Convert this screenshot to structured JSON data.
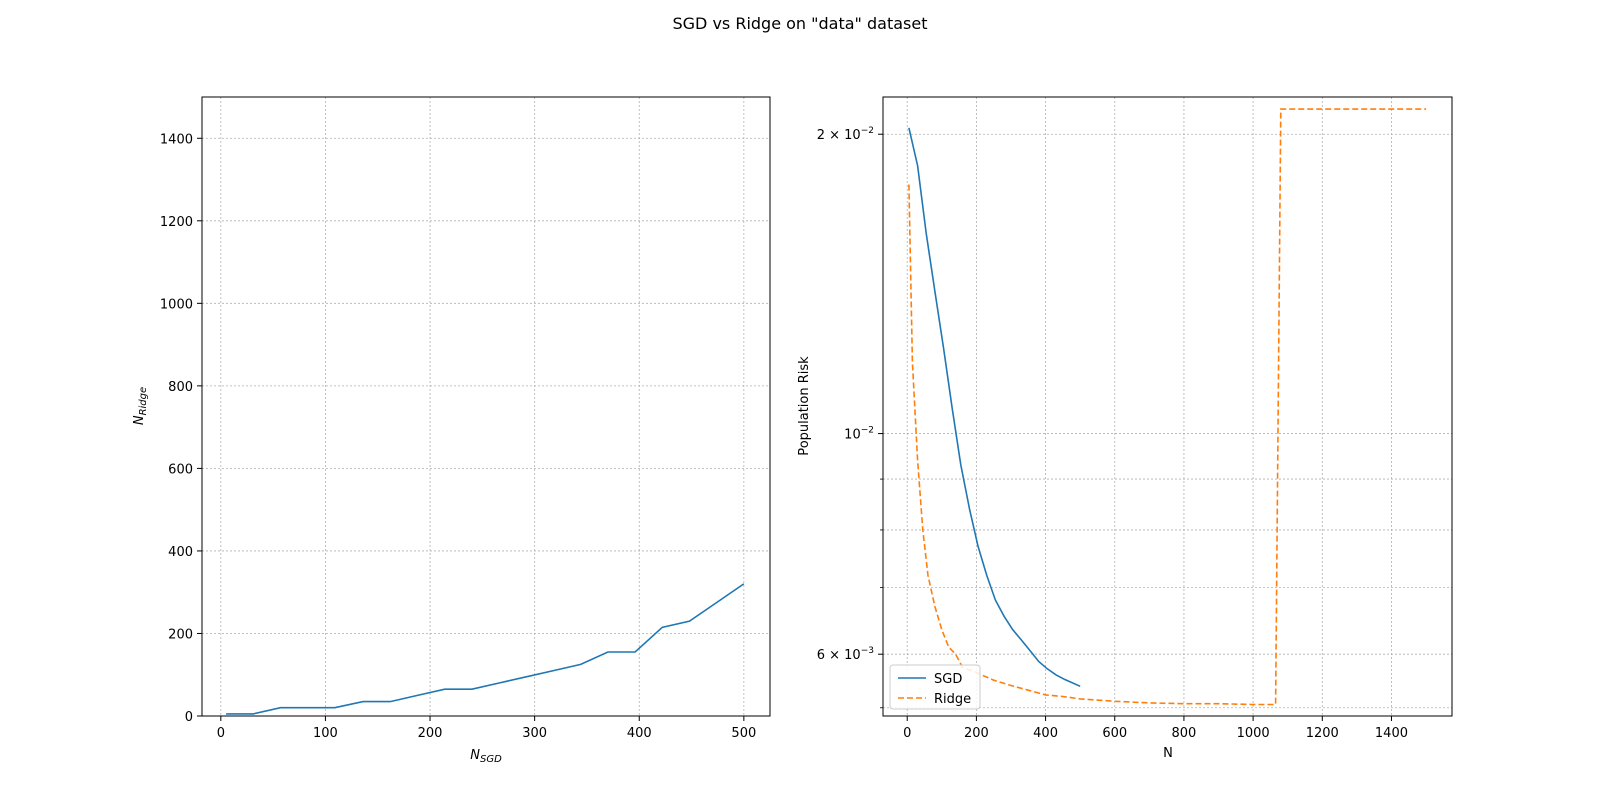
{
  "figure": {
    "title": "SGD vs Ridge on \"data\" dataset"
  },
  "chart_data": [
    {
      "type": "line",
      "xlabel": "N",
      "xlabel_sub": "SGD",
      "ylabel": "N",
      "ylabel_sub": "Ridge",
      "xlim": [
        -18,
        525
      ],
      "ylim": [
        0,
        1500
      ],
      "xticks": [
        0,
        100,
        200,
        300,
        400,
        500
      ],
      "yticks": [
        0,
        200,
        400,
        600,
        800,
        1000,
        1200,
        1400
      ],
      "grid": true,
      "series": [
        {
          "color": "#1f77b4",
          "dash": "solid",
          "x": [
            5,
            31,
            57,
            83,
            109,
            136,
            162,
            188,
            214,
            240,
            266,
            292,
            318,
            344,
            370,
            396,
            422,
            448,
            474,
            500
          ],
          "y": [
            5,
            5,
            20,
            20,
            20,
            35,
            35,
            50,
            65,
            65,
            80,
            95,
            110,
            125,
            155,
            155,
            215,
            230,
            275,
            320
          ]
        }
      ]
    },
    {
      "type": "line",
      "xlabel": "N",
      "ylabel": "Population Risk",
      "yscale": "log",
      "xlim": [
        -70,
        1575
      ],
      "ylim": [
        0.0052,
        0.0218
      ],
      "xticks": [
        0,
        200,
        400,
        600,
        800,
        1000,
        1200,
        1400
      ],
      "yticks_major": [
        {
          "value": 0.006,
          "mantissa": "6",
          "exponent": "−3"
        },
        {
          "value": 0.01,
          "mantissa": "",
          "exponent": "−2"
        },
        {
          "value": 0.02,
          "mantissa": "2",
          "exponent": "−2"
        }
      ],
      "yticks_minor": [
        0.007,
        0.008,
        0.009
      ],
      "grid": true,
      "legend": "bottom-left",
      "series": [
        {
          "name": "SGD",
          "color": "#1f77b4",
          "dash": "solid",
          "x": [
            5,
            30,
            55,
            80,
            105,
            130,
            155,
            180,
            205,
            230,
            255,
            280,
            305,
            330,
            355,
            380,
            405,
            430,
            455,
            500
          ],
          "y": [
            0.0203,
            0.0186,
            0.0159,
            0.0139,
            0.0122,
            0.0106,
            0.0093,
            0.0084,
            0.0077,
            0.0072,
            0.0068,
            0.00655,
            0.00635,
            0.0062,
            0.00605,
            0.0059,
            0.0058,
            0.00572,
            0.00566,
            0.00557
          ]
        },
        {
          "name": "Ridge",
          "color": "#ff7f0e",
          "dash": "dashed",
          "x": [
            5,
            15,
            30,
            45,
            60,
            80,
            100,
            120,
            140,
            160,
            200,
            250,
            300,
            350,
            400,
            450,
            500,
            600,
            700,
            800,
            900,
            1000,
            1065,
            1080,
            1200,
            1300,
            1500
          ],
          "y": [
            0.0178,
            0.0118,
            0.0094,
            0.008,
            0.0072,
            0.0067,
            0.00635,
            0.0061,
            0.006,
            0.00582,
            0.00575,
            0.00565,
            0.00558,
            0.00552,
            0.00546,
            0.00544,
            0.00541,
            0.00538,
            0.00536,
            0.00535,
            0.00535,
            0.00534,
            0.00534,
            0.0212,
            0.0212,
            0.0212,
            0.0212
          ]
        }
      ]
    }
  ]
}
